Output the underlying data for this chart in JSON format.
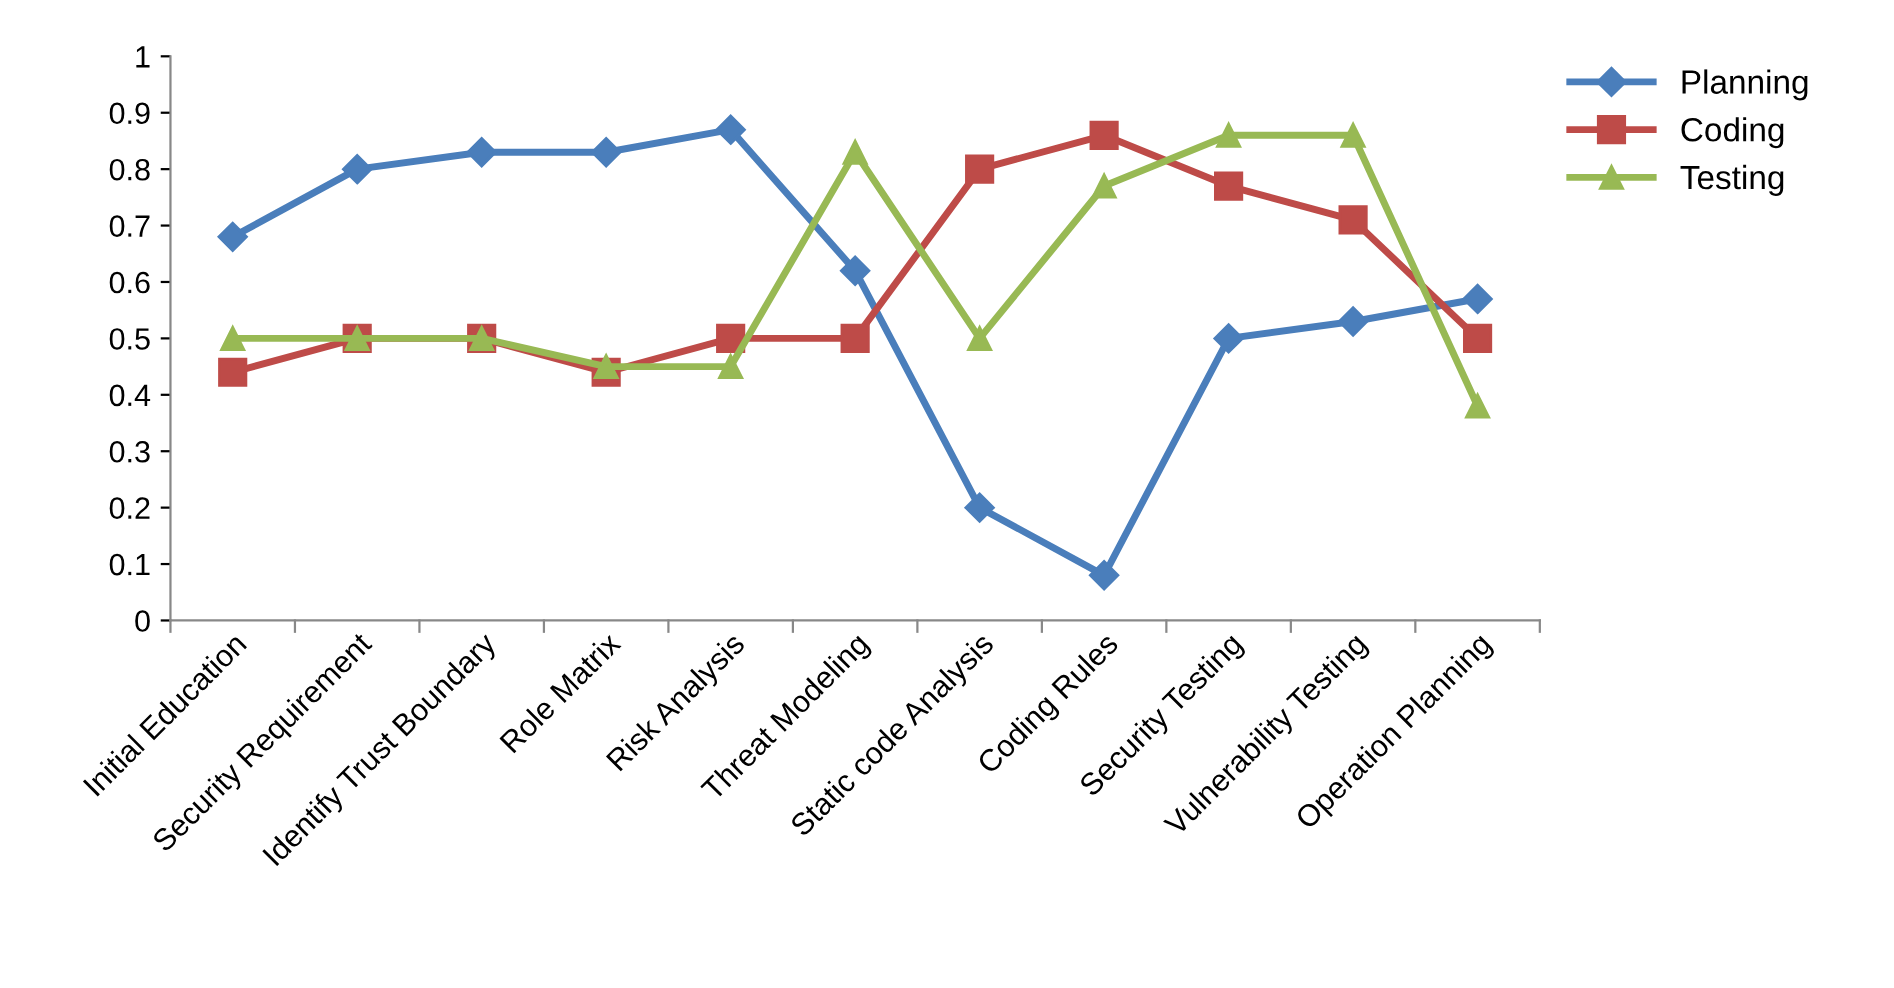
{
  "chart_data": {
    "type": "line",
    "categories": [
      "Initial Education",
      "Security Requirement",
      "Identify Trust Boundary",
      "Role Matrix",
      "Risk Analysis",
      "Threat Modeling",
      "Static code Analysis",
      "Coding Rules",
      "Security Testing",
      "Vulnerability Testing",
      "Operation Planning"
    ],
    "series": [
      {
        "name": "Planning",
        "color": "#4a7ebb",
        "marker": "diamond",
        "values": [
          0.68,
          0.8,
          0.83,
          0.83,
          0.87,
          0.62,
          0.2,
          0.08,
          0.5,
          0.53,
          0.57
        ]
      },
      {
        "name": "Coding",
        "color": "#be4b48",
        "marker": "square",
        "values": [
          0.44,
          0.5,
          0.5,
          0.44,
          0.5,
          0.5,
          0.8,
          0.86,
          0.77,
          0.71,
          0.5
        ]
      },
      {
        "name": "Testing",
        "color": "#98b954",
        "marker": "triangle",
        "values": [
          0.5,
          0.5,
          0.5,
          0.45,
          0.45,
          0.83,
          0.5,
          0.77,
          0.86,
          0.86,
          0.38
        ]
      }
    ],
    "ylim": [
      0,
      1
    ],
    "yticks": [
      0,
      0.1,
      0.2,
      0.3,
      0.4,
      0.5,
      0.6,
      0.7,
      0.8,
      0.9,
      1
    ],
    "grid": false,
    "legend": "top right",
    "line_style": "solid"
  }
}
